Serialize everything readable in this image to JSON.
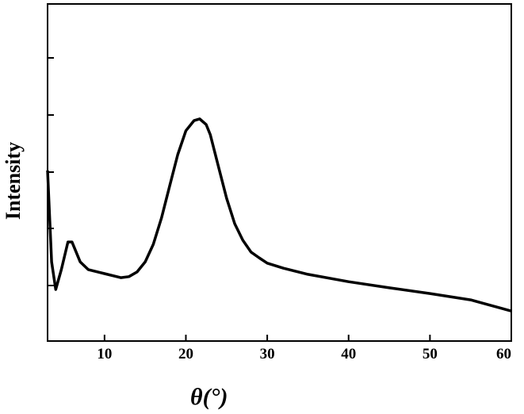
{
  "chart_data": {
    "type": "line",
    "xlabel": "θ(°)",
    "ylabel": "Intensity",
    "xlim": [
      3,
      60
    ],
    "ylim": [
      0,
      100
    ],
    "xticks": [
      10,
      20,
      30,
      40,
      50,
      60
    ],
    "series": [
      {
        "name": "Intensity",
        "color": "#000000",
        "x": [
          3,
          3.5,
          4,
          4.7,
          5.5,
          6,
          7,
          8,
          10,
          12,
          13,
          14,
          15,
          16,
          17,
          18,
          19,
          20,
          21,
          21.7,
          22.5,
          23,
          24,
          25,
          26,
          27,
          28,
          29,
          30,
          32,
          35,
          40,
          45,
          50,
          55,
          60
        ],
        "values": [
          50.6,
          23.5,
          15.3,
          21.2,
          29.4,
          29.4,
          23.5,
          21.2,
          20,
          18.8,
          19.1,
          20.5,
          23.5,
          28.7,
          36.5,
          45.9,
          55.3,
          62.4,
          65.4,
          65.9,
          64.2,
          61.2,
          51.8,
          42.4,
          34.8,
          29.9,
          26.4,
          24.7,
          23.1,
          21.6,
          19.8,
          17.6,
          15.8,
          14.1,
          12.2,
          8.9
        ]
      }
    ]
  }
}
